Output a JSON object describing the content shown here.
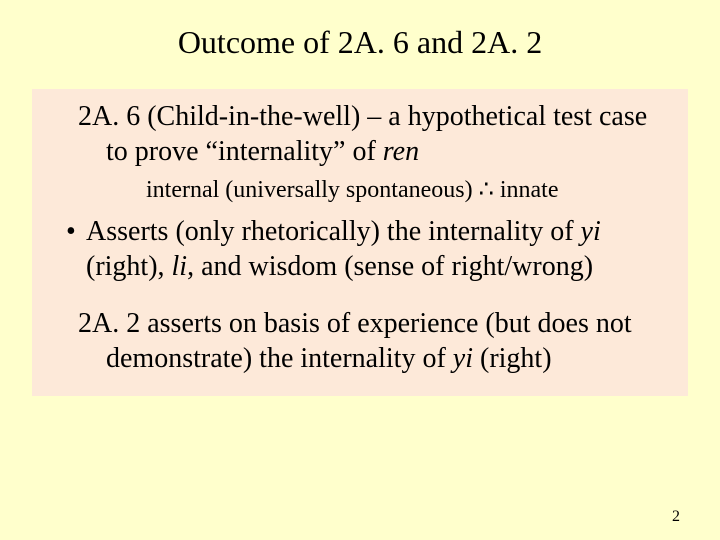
{
  "colors": {
    "slide_background": "#ffffcc",
    "box_background": "#fde9d9",
    "text": "#000000"
  },
  "typography": {
    "family": "Times New Roman",
    "title_fontsize_pt": 24,
    "body_fontsize_pt": 21,
    "subline_fontsize_pt": 18,
    "pagenum_fontsize_pt": 12
  },
  "title": "Outcome of 2A. 6 and 2A. 2",
  "box": {
    "para1_a": "2A. 6 (Child-in-the-well) – a hypothetical test case to prove “internality” of ",
    "para1_ren": "ren",
    "subline_a": "internal (universally spontaneous) ",
    "subline_sym": "∴",
    "subline_b": " innate",
    "bullet_dot": "•",
    "bullet_a": "Asserts (only rhetorically) the internality of ",
    "bullet_yi": "yi",
    "bullet_b": " (right), ",
    "bullet_li": "li",
    "bullet_c": ", and wisdom (sense of right/wrong)",
    "para2_a": "2A. 2 asserts on basis of experience (but does not demonstrate) the internality of ",
    "para2_yi": "yi",
    "para2_b": " (right)"
  },
  "page_number": "2"
}
